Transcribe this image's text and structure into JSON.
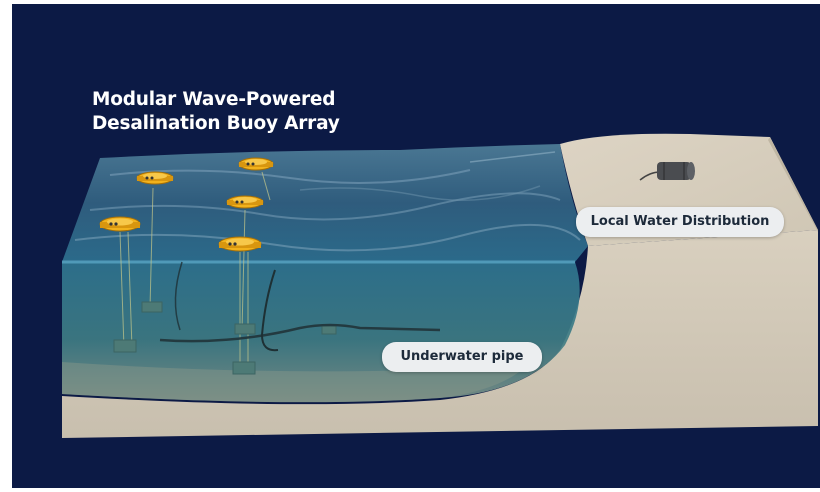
{
  "title": {
    "line1": "Modular Wave-Powered",
    "line2": "Desalination Buoy Array"
  },
  "labels": {
    "local_water": "Local Water Distribution",
    "underwater_pipe": "Underwater pipe"
  },
  "colors": {
    "background_navy": "#0c1a45",
    "outer_white": "#ffffff",
    "sand": "#d8cfbd",
    "sand_dark": "#c9bfac",
    "water_surface": "#2f5f7f",
    "water_body": "#2e6e82",
    "buoy_yellow": "#f2b21c",
    "label_bg": "#eceef0",
    "label_text": "#1d2a3a"
  }
}
